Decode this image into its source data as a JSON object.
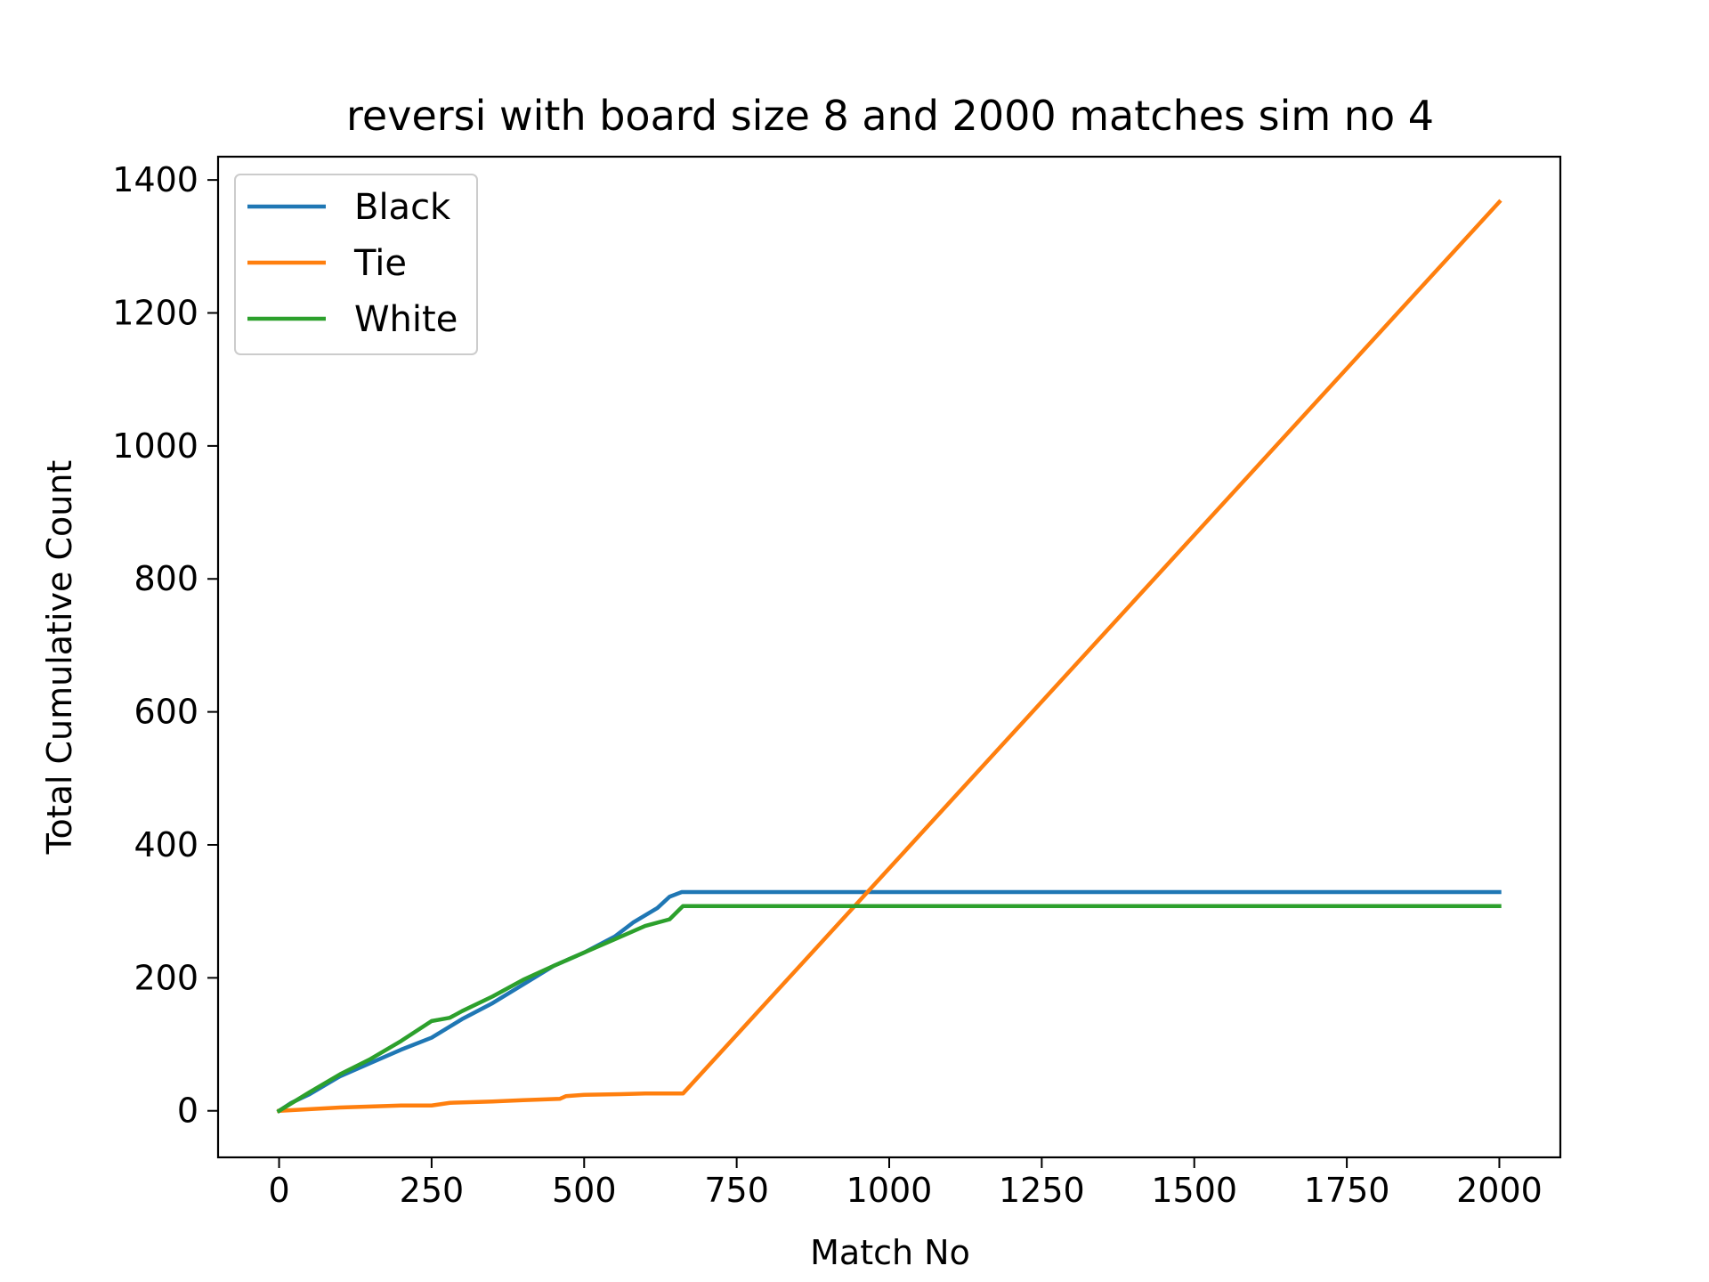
{
  "chart_data": {
    "type": "line",
    "title": "reversi with board size 8 and 2000 matches sim no 4",
    "xlabel": "Match No",
    "ylabel": "Total Cumulative Count",
    "xlim": [
      -100,
      2100
    ],
    "ylim": [
      -70,
      1435
    ],
    "xticks": [
      0,
      250,
      500,
      750,
      1000,
      1250,
      1500,
      1750,
      2000
    ],
    "xtick_labels": [
      "0",
      "250",
      "500",
      "750",
      "1000",
      "1250",
      "1500",
      "1750",
      "2000"
    ],
    "yticks": [
      0,
      200,
      400,
      600,
      800,
      1000,
      1200,
      1400
    ],
    "ytick_labels": [
      "0",
      "200",
      "400",
      "600",
      "800",
      "1000",
      "1200",
      "1400"
    ],
    "grid": false,
    "legend_position": "top-left",
    "series": [
      {
        "name": "Black",
        "color": "#1f77b4",
        "points": [
          [
            0,
            0
          ],
          [
            20,
            12
          ],
          [
            50,
            25
          ],
          [
            100,
            52
          ],
          [
            150,
            72
          ],
          [
            200,
            92
          ],
          [
            250,
            110
          ],
          [
            300,
            138
          ],
          [
            350,
            162
          ],
          [
            400,
            190
          ],
          [
            450,
            218
          ],
          [
            500,
            238
          ],
          [
            550,
            262
          ],
          [
            580,
            283
          ],
          [
            620,
            305
          ],
          [
            640,
            322
          ],
          [
            660,
            329
          ],
          [
            2000,
            329
          ]
        ]
      },
      {
        "name": "Tie",
        "color": "#ff7f0e",
        "points": [
          [
            0,
            0
          ],
          [
            100,
            5
          ],
          [
            200,
            8
          ],
          [
            250,
            8
          ],
          [
            280,
            12
          ],
          [
            350,
            14
          ],
          [
            400,
            16
          ],
          [
            460,
            18
          ],
          [
            470,
            22
          ],
          [
            500,
            24
          ],
          [
            560,
            25
          ],
          [
            600,
            26
          ],
          [
            662,
            26
          ],
          [
            2000,
            1367
          ]
        ]
      },
      {
        "name": "White",
        "color": "#2ca02c",
        "points": [
          [
            0,
            0
          ],
          [
            50,
            28
          ],
          [
            100,
            55
          ],
          [
            150,
            78
          ],
          [
            200,
            105
          ],
          [
            250,
            135
          ],
          [
            280,
            140
          ],
          [
            300,
            150
          ],
          [
            350,
            172
          ],
          [
            400,
            197
          ],
          [
            450,
            218
          ],
          [
            500,
            238
          ],
          [
            550,
            258
          ],
          [
            600,
            278
          ],
          [
            640,
            288
          ],
          [
            662,
            308
          ],
          [
            2000,
            308
          ]
        ]
      }
    ]
  }
}
